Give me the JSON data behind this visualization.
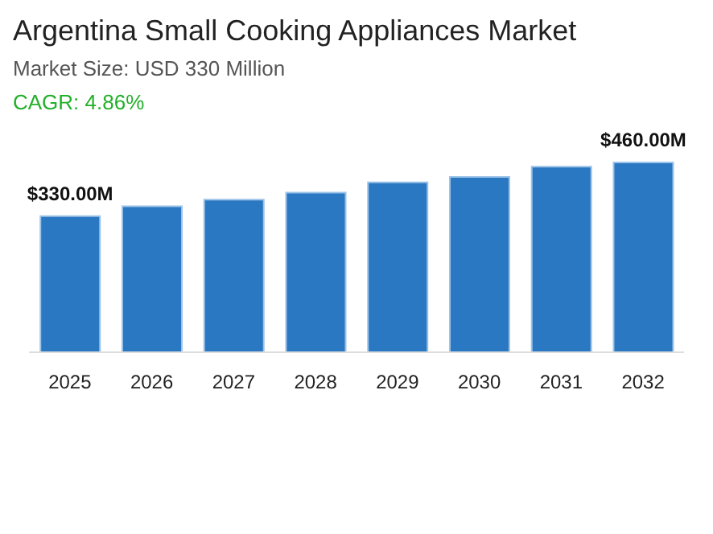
{
  "chart_data": {
    "type": "bar",
    "title": "Argentina Small Cooking Appliances Market",
    "subtitle": "Market Size: USD 330 Million",
    "annotations": [
      "CAGR: 4.86%"
    ],
    "categories": [
      "2025",
      "2026",
      "2027",
      "2028",
      "2029",
      "2030",
      "2031",
      "2032"
    ],
    "values": [
      330,
      354,
      370,
      387,
      412,
      425,
      450,
      460
    ],
    "value_labels": [
      "$330.00M",
      null,
      null,
      null,
      null,
      null,
      null,
      "$460.00M"
    ],
    "color": "#2b78c2",
    "grid": false,
    "legend": false
  }
}
